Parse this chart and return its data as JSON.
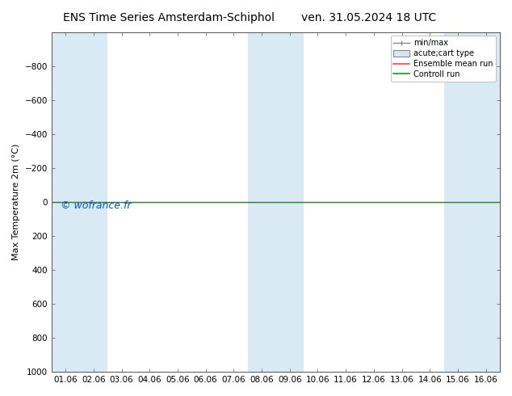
{
  "title_left": "ENS Time Series Amsterdam-Schiphol",
  "title_right": "ven. 31.05.2024 18 UTC",
  "ylabel": "Max Temperature 2m (°C)",
  "ylim_bottom": 1000,
  "ylim_top": -1000,
  "yticks": [
    -800,
    -600,
    -400,
    -200,
    0,
    200,
    400,
    600,
    800,
    1000
  ],
  "xtick_labels": [
    "01.06",
    "02.06",
    "03.06",
    "04.06",
    "05.06",
    "06.06",
    "07.06",
    "08.06",
    "09.06",
    "10.06",
    "11.06",
    "12.06",
    "13.06",
    "14.06",
    "15.06",
    "16.06"
  ],
  "xtick_positions": [
    0.5,
    1.5,
    2.5,
    3.5,
    4.5,
    5.5,
    6.5,
    7.5,
    8.5,
    9.5,
    10.5,
    11.5,
    12.5,
    13.5,
    14.5,
    15.5
  ],
  "xlim": [
    0,
    16
  ],
  "blue_bands": [
    [
      0,
      1
    ],
    [
      1,
      2
    ],
    [
      7,
      8
    ],
    [
      8,
      9
    ],
    [
      14,
      15
    ],
    [
      15,
      16
    ]
  ],
  "band_color": "#daeaf5",
  "green_line_y": 0,
  "green_line_color": "#228B22",
  "red_line_y": 0,
  "red_line_color": "#ff4444",
  "watermark": "© wofrance.fr",
  "watermark_color": "#0055cc",
  "bg_color": "#ffffff",
  "axes_bg": "#ffffff",
  "legend_entries": [
    "min/max",
    "acute;cart type",
    "Ensemble mean run",
    "Controll run"
  ],
  "legend_colors_line": [
    "#888888",
    "#888888",
    "#ff4444",
    "#228B22"
  ],
  "title_fontsize": 10,
  "tick_fontsize": 7.5,
  "ylabel_fontsize": 8
}
